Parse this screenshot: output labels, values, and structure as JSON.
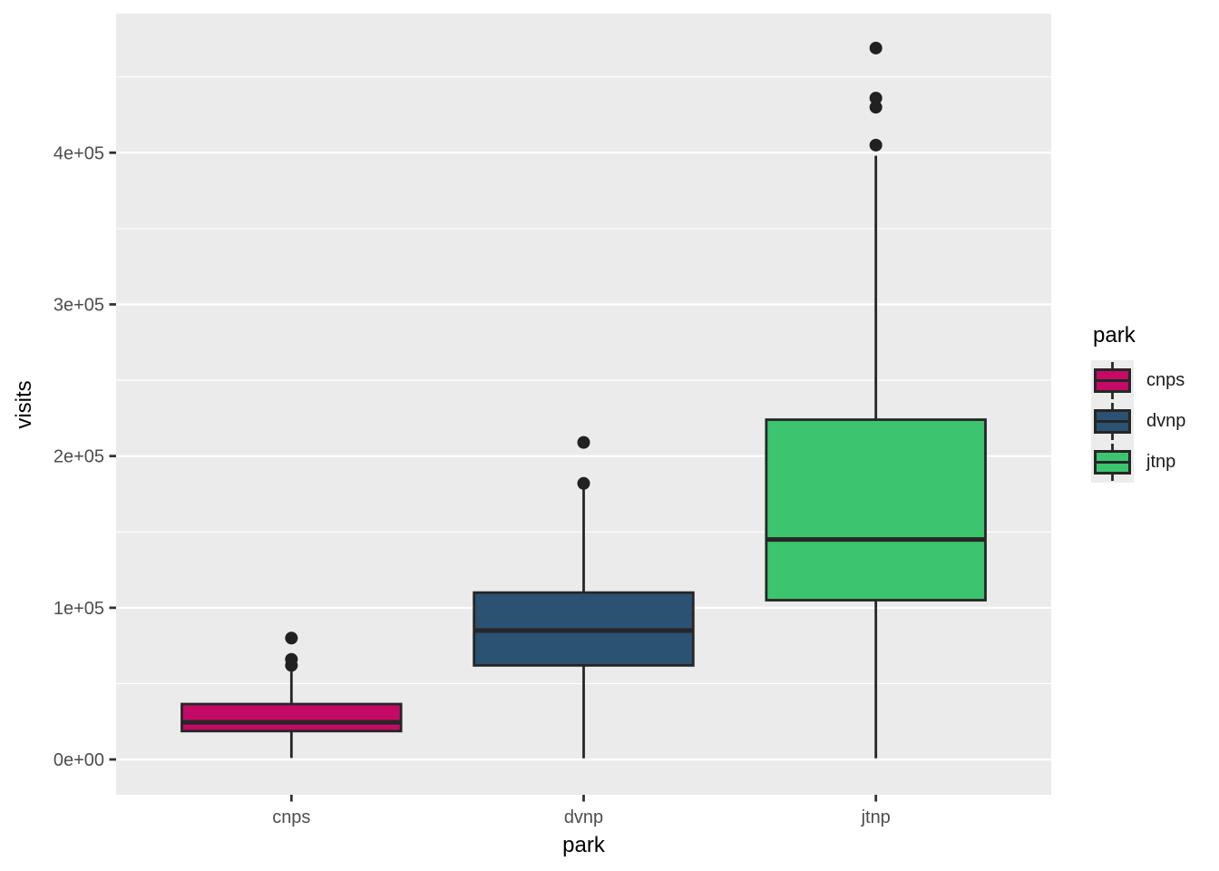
{
  "figure": {
    "background": "#ffffff",
    "panel_background": "#ebebeb",
    "gridline_color": "#ffffff",
    "axis_text_color": "#4d4d4d",
    "tick_mark_color": "#333333",
    "box_outline_color": "#262626",
    "outlier_color": "#212121",
    "legend_key_background": "#ececec"
  },
  "axes": {
    "x_title": "park",
    "y_title": "visits"
  },
  "legend": {
    "title": "park"
  },
  "chart_data": {
    "type": "boxplot",
    "title": "",
    "xlabel": "park",
    "ylabel": "visits",
    "categories": [
      "cnps",
      "dvnp",
      "jtnp"
    ],
    "ylim": [
      -23300,
      491700
    ],
    "y_tick_values": [
      0,
      100000,
      200000,
      300000,
      400000
    ],
    "y_tick_labels": [
      "0e+00",
      "1e+05",
      "2e+05",
      "3e+05",
      "4e+05"
    ],
    "y_minor_gridlines": [
      50000,
      150000,
      250000,
      350000,
      450000
    ],
    "grid": "on",
    "legend_position": "right",
    "series": [
      {
        "name": "cnps",
        "color": "#c40a66",
        "whisker_low": 1000,
        "q1": 18700,
        "median": 24500,
        "q3": 36500,
        "whisker_high": 58000,
        "outliers": [
          62000,
          66000,
          80000
        ]
      },
      {
        "name": "dvnp",
        "color": "#2b5173",
        "whisker_low": 800,
        "q1": 62000,
        "median": 85000,
        "q3": 110000,
        "whisker_high": 178000,
        "outliers": [
          182000,
          209000
        ]
      },
      {
        "name": "jtnp",
        "color": "#3cc46e",
        "whisker_low": 800,
        "q1": 105000,
        "median": 145000,
        "q3": 224000,
        "whisker_high": 398000,
        "outliers": [
          405000,
          430000,
          436000,
          469000
        ]
      }
    ]
  }
}
